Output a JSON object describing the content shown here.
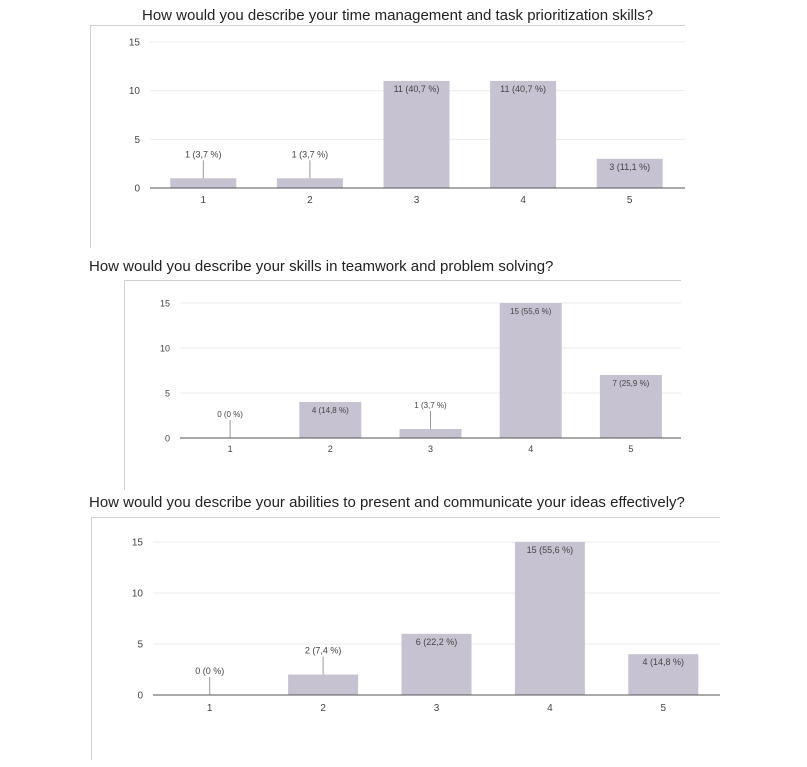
{
  "colors": {
    "bar": "#c6c2d2",
    "grid": "#ebebeb",
    "axis": "#555555",
    "text": "#444444",
    "leader": "#999999"
  },
  "chart_data": [
    {
      "type": "bar",
      "title": "How would you describe your time management and task prioritization skills?",
      "categories": [
        "1",
        "2",
        "3",
        "4",
        "5"
      ],
      "values": [
        1,
        1,
        11,
        11,
        3
      ],
      "data_labels": [
        "1 (3,7 %)",
        "1 (3,7 %)",
        "11 (40,7 %)",
        "11 (40,7 %)",
        "3 (11,1 %)"
      ],
      "yticks": [
        "0",
        "5",
        "10",
        "15"
      ],
      "ylim": [
        0,
        15
      ],
      "grid": true
    },
    {
      "type": "bar",
      "title": "How would you describe your skills in teamwork and problem solving?",
      "categories": [
        "1",
        "2",
        "3",
        "4",
        "5"
      ],
      "values": [
        0,
        4,
        1,
        15,
        7
      ],
      "data_labels": [
        "0 (0 %)",
        "4 (14,8 %)",
        "1 (3,7 %)",
        "15 (55,6 %)",
        "7 (25,9 %)"
      ],
      "yticks": [
        "0",
        "5",
        "10",
        "15"
      ],
      "ylim": [
        0,
        15
      ],
      "grid": true
    },
    {
      "type": "bar",
      "title": "How would you describe your abilities to present and communicate your ideas effectively?",
      "categories": [
        "1",
        "2",
        "3",
        "4",
        "5"
      ],
      "values": [
        0,
        2,
        6,
        15,
        4
      ],
      "data_labels": [
        "0 (0 %)",
        "2 (7,4 %)",
        "6 (22,2 %)",
        "15 (55,6 %)",
        "4 (14,8 %)"
      ],
      "yticks": [
        "0",
        "5",
        "10",
        "15"
      ],
      "ylim": [
        0,
        15
      ],
      "grid": true
    }
  ]
}
